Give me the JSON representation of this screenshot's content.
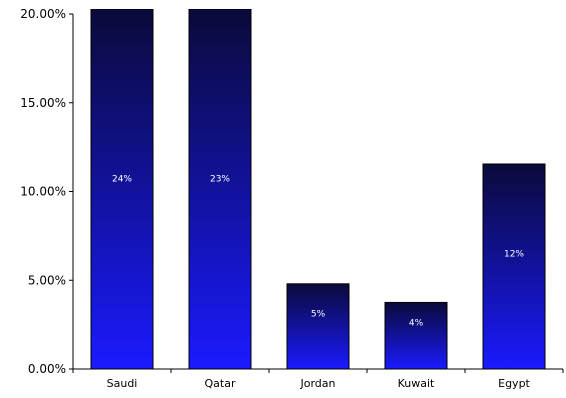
{
  "chart_data": {
    "type": "bar",
    "title": "",
    "xlabel": "",
    "ylabel": "",
    "categories": [
      "Saudi",
      "Qatar",
      "Jordan",
      "Kuwait",
      "Egypt"
    ],
    "values": [
      24,
      23,
      4.8,
      3.75,
      11.55
    ],
    "data_labels": [
      "24%",
      "23%",
      "5%",
      "4%",
      "12%"
    ],
    "ylim": [
      0,
      20
    ],
    "yticks": [
      0,
      5,
      10,
      15,
      20
    ],
    "ytick_labels": [
      "0.00%",
      "5.00%",
      "10.00%",
      "15.00%",
      "20.00%"
    ],
    "bar_gradient": {
      "top": "#0a0a3a",
      "bottom": "#1a1aff"
    },
    "bar_outline": "#000000",
    "grid": false,
    "legend": "none"
  }
}
